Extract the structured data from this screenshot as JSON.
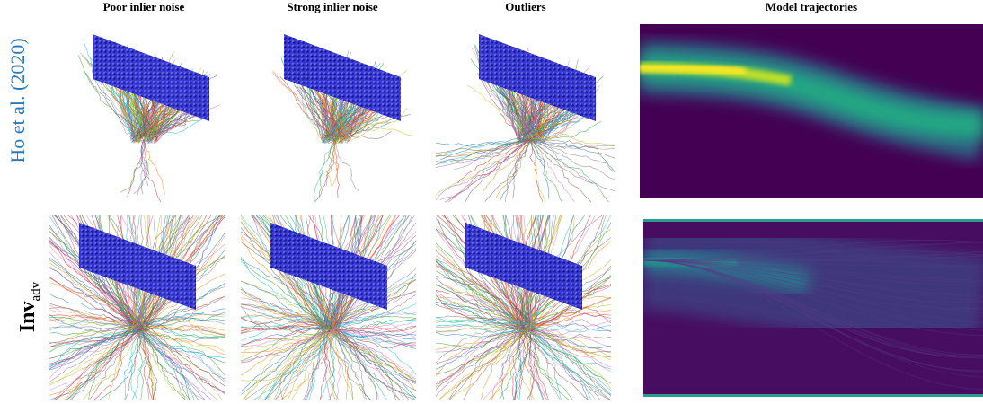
{
  "columns": [
    "Poor inlier noise",
    "Strong inlier noise",
    "Outliers",
    "Model trajectories"
  ],
  "rows": [
    {
      "label": "Ho et al. (2020)"
    },
    {
      "label": "Inv",
      "subscript": "adv"
    }
  ]
}
